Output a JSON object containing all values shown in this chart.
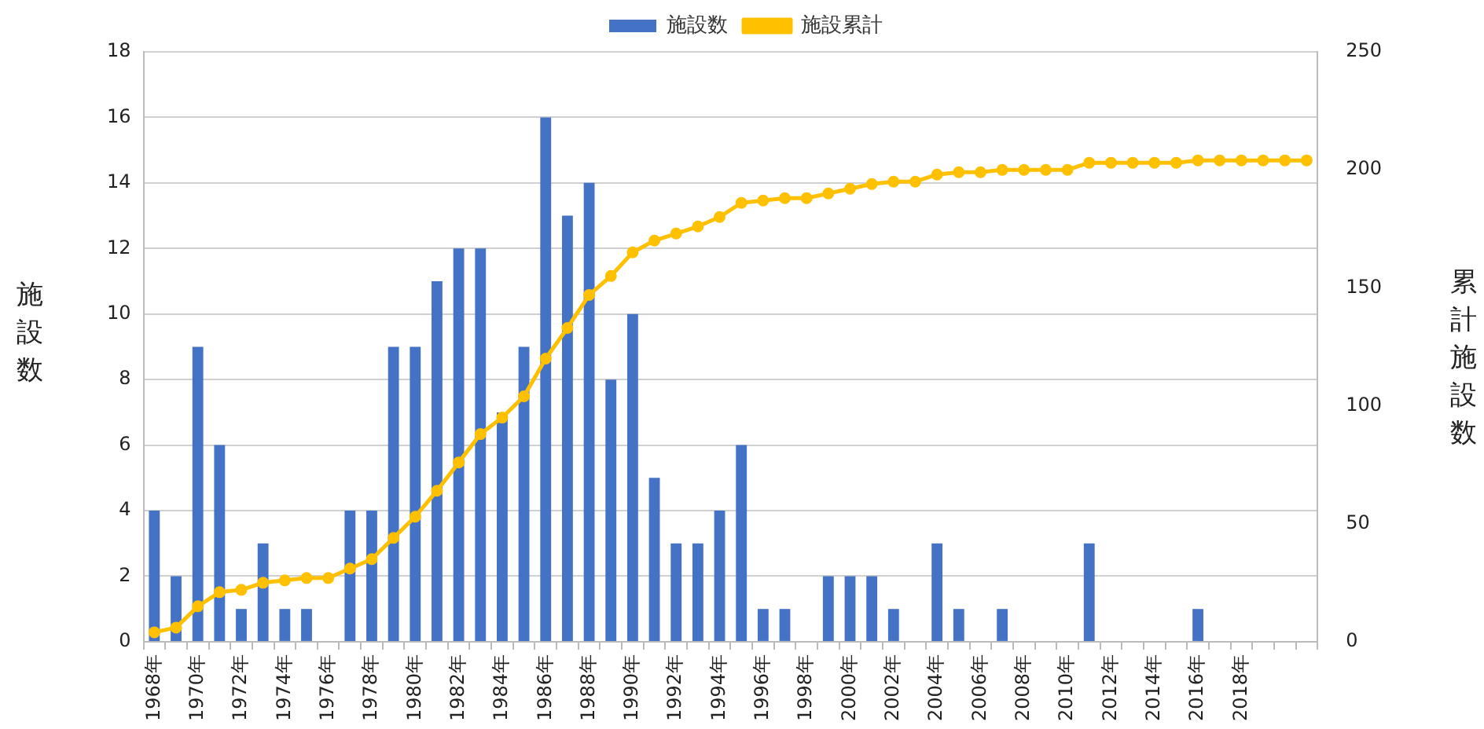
{
  "chart_data": {
    "type": "bar",
    "categories": [
      "1968年",
      null,
      "1970年",
      null,
      "1972年",
      null,
      "1974年",
      null,
      "1976年",
      null,
      "1978年",
      null,
      "1980年",
      null,
      "1982年",
      null,
      "1984年",
      null,
      "1986年",
      null,
      "1988年",
      null,
      "1990年",
      null,
      "1992年",
      null,
      "1994年",
      null,
      "1996年",
      null,
      "1998年",
      null,
      "2000年",
      null,
      "2002年",
      null,
      "2004年",
      null,
      "2006年",
      null,
      "2008年",
      null,
      "2010年",
      null,
      "2012年",
      null,
      "2014年",
      null,
      "2016年",
      null,
      "2018年",
      null,
      null,
      null
    ],
    "series": [
      {
        "name": "施設数",
        "color": "#4472c4",
        "values": [
          4,
          2,
          9,
          6,
          1,
          3,
          1,
          1,
          0,
          4,
          4,
          9,
          9,
          11,
          12,
          12,
          7,
          9,
          16,
          13,
          14,
          8,
          10,
          5,
          3,
          3,
          4,
          6,
          1,
          1,
          0,
          2,
          2,
          2,
          1,
          0,
          3,
          1,
          0,
          1,
          0,
          0,
          0,
          3,
          0,
          0,
          0,
          0,
          1,
          0,
          0,
          0,
          0,
          0
        ]
      },
      {
        "name": "施設累計",
        "type": "line",
        "axis": "y2",
        "color": "#ffc000",
        "values": [
          4,
          6,
          15,
          21,
          22,
          25,
          26,
          27,
          27,
          31,
          35,
          44,
          53,
          64,
          76,
          88,
          95,
          104,
          120,
          133,
          147,
          155,
          165,
          170,
          173,
          176,
          180,
          186,
          187,
          188,
          188,
          190,
          192,
          194,
          195,
          195,
          198,
          199,
          199,
          200,
          200,
          200,
          200,
          203,
          203,
          203,
          203,
          203,
          204,
          204,
          204,
          204,
          204,
          204
        ]
      }
    ],
    "ylabel": "施設数",
    "y2label": "累計施設数",
    "ylim": [
      0,
      18
    ],
    "yticks": [
      0,
      2,
      4,
      6,
      8,
      10,
      12,
      14,
      16,
      18
    ],
    "y2lim": [
      0,
      250
    ],
    "y2ticks": [
      0,
      50,
      100,
      150,
      200,
      250
    ],
    "grid": "y",
    "legend": "top",
    "marker": "circle"
  }
}
